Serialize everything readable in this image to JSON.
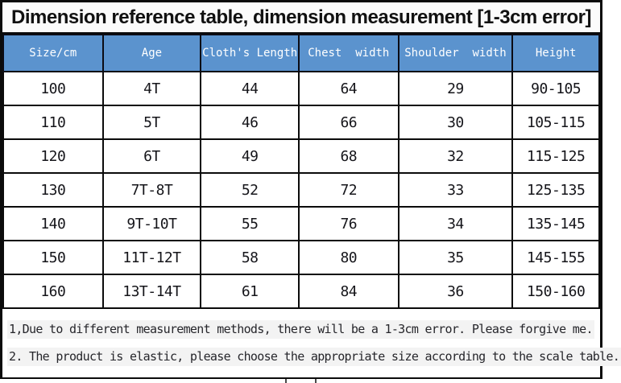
{
  "title": "Dimension reference table, dimension measurement [1-3cm error]",
  "table": {
    "headers": [
      "Size/cm",
      "Age",
      "Cloth's Length",
      "Chest  width",
      "Shoulder  width",
      "Height"
    ],
    "rows": [
      [
        "100",
        "4T",
        "44",
        "64",
        "29",
        "90-105"
      ],
      [
        "110",
        "5T",
        "46",
        "66",
        "30",
        "105-115"
      ],
      [
        "120",
        "6T",
        "49",
        "68",
        "32",
        "115-125"
      ],
      [
        "130",
        "7T-8T",
        "52",
        "72",
        "33",
        "125-135"
      ],
      [
        "140",
        "9T-10T",
        "55",
        "76",
        "34",
        "135-145"
      ],
      [
        "150",
        "11T-12T",
        "58",
        "80",
        "35",
        "145-155"
      ],
      [
        "160",
        "13T-14T",
        "61",
        "84",
        "36",
        "150-160"
      ]
    ]
  },
  "notes": [
    "1,Due to different measurement methods, there will be a 1-3cm error. Please forgive me.",
    "2. The product is elastic, please choose the appropriate size according to the scale table."
  ],
  "colors": {
    "header_bg": "#5b93ce",
    "header_text": "#ffffff",
    "border": "#0b0b0b",
    "note_highlight": "#f3f3f3",
    "title_bg": "#fbfbfb"
  }
}
